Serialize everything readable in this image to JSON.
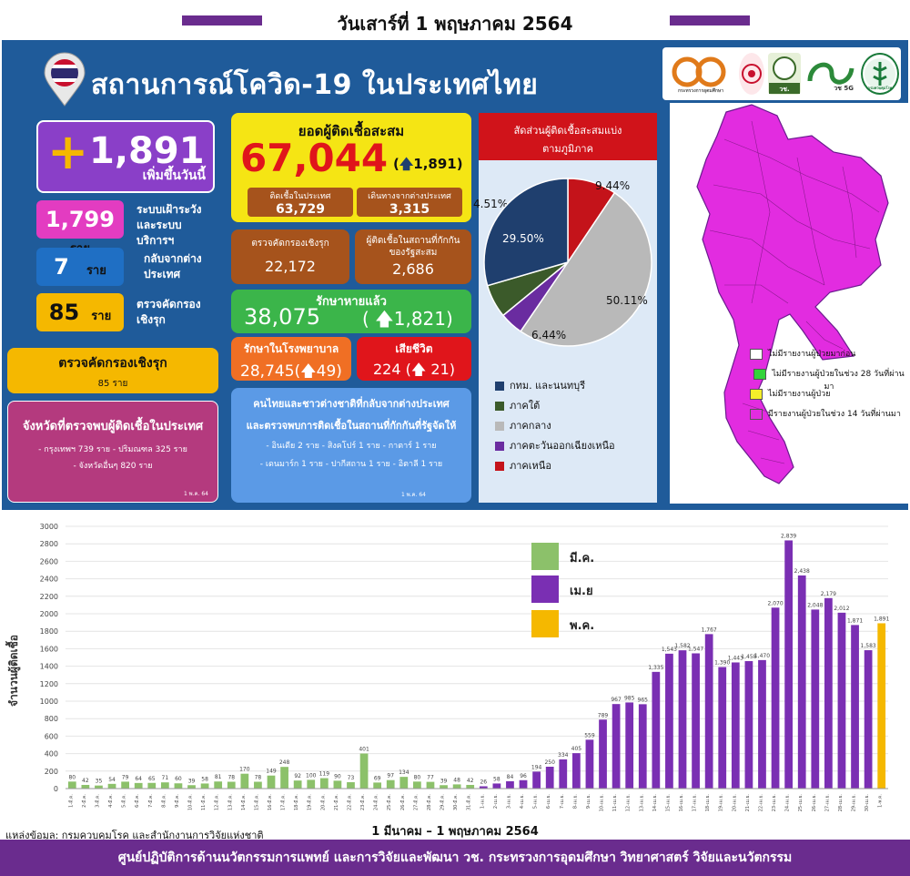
{
  "date_title": "วันเสาร์ที่ 1 พฤษภาคม 2564",
  "header_title": "สถานการณ์โควิด-19 ในประเทศไทย",
  "new_cases": {
    "value": "1,891",
    "label": "เพิ่มขึ้นวันนี้"
  },
  "breakdown": [
    {
      "num": "1,799",
      "unit": "ราย",
      "desc": "ระบบเฝ้าระวังและระบบบริการฯ",
      "color": "#e33cc1"
    },
    {
      "num": "7",
      "unit": "ราย",
      "desc": "กลับจากต่างประเทศ",
      "color": "#1f6fc4"
    },
    {
      "num": "85",
      "unit": "ราย",
      "desc": "ตรวจคัดกรองเชิงรุก",
      "color": "#f5b800"
    }
  ],
  "active_screen": {
    "title": "ตรวจคัดกรองเชิงรุก",
    "sub": "85 ราย"
  },
  "province": {
    "title": "จังหวัดที่ตรวจพบผู้ติดเชื้อในประเทศ",
    "line1": "- กรุงเทพฯ 739 ราย   - ปริมณฑล 325 ราย",
    "line2": "- จังหวัดอื่นๆ 820 ราย",
    "date": "1 พ.ค. 64"
  },
  "cumulative": {
    "title": "ยอดผู้ติดเชื้อสะสม",
    "value": "67,044",
    "delta": "1,891",
    "local_label": "ติดเชื้อในประเทศ",
    "local_value": "63,729",
    "abroad_label": "เดินทางจากต่างประเทศ",
    "abroad_value": "3,315"
  },
  "active_cum": {
    "label": "ตรวจคัดกรองเชิงรุก",
    "value": "22,172"
  },
  "quarantine_cum": {
    "label": "ผู้ติดเชื้อในสถานที่กักกันของรัฐสะสม",
    "value": "2,686"
  },
  "recovered": {
    "label": "รักษาหายแล้ว",
    "value": "38,075",
    "delta": "1,821"
  },
  "hospital": {
    "label": "รักษาในโรงพยาบาล",
    "value": "28,745",
    "delta": "49"
  },
  "deaths": {
    "label": "เสียชีวิต",
    "value": "224",
    "delta": "21"
  },
  "returnees": {
    "line1": "คนไทยและชาวต่างชาติที่กลับจากต่างประเทศ",
    "line2": "และตรวจพบการติดเชื้อในสถานที่กักกันที่รัฐจัดให้",
    "line3": "- อินเดีย 2 ราย   - สิงคโปร์ 1 ราย   - กาตาร์ 1 ราย",
    "line4": "- เดนมาร์ก 1 ราย   - ปากีสถาน 1 ราย   - อิตาลี 1 ราย",
    "date": "1 พ.ค. 64"
  },
  "pie": {
    "title": "สัดส่วนผู้ติดเชื้อสะสมแบ่งตามภูมิภาค",
    "slices": [
      {
        "name": "ภาคเหนือ",
        "value": 9.44,
        "label": "9.44%",
        "color": "#c4131a"
      },
      {
        "name": "ภาคกลาง",
        "value": 50.11,
        "label": "50.11%",
        "color": "#b9b9b9"
      },
      {
        "name": "ภาคตะวันออกเฉียงเหนือ",
        "value": 4.51,
        "label": "4.51%",
        "color": "#6a2ca0"
      },
      {
        "name": "ภาคใต้",
        "value": 6.44,
        "label": "6.44%",
        "color": "#3b5a2a"
      },
      {
        "name": "กทม. และนนทบุรี",
        "value": 29.5,
        "label": "29.50%",
        "color": "#1f3f6e"
      }
    ],
    "legend": [
      "กทม. และนนทบุรี",
      "ภาคใต้",
      "ภาคกลาง",
      "ภาคตะวันออกเฉียงเหนือ",
      "ภาคเหนือ"
    ],
    "legend_colors": [
      "#1f3f6e",
      "#3b5a2a",
      "#b9b9b9",
      "#6a2ca0",
      "#c4131a"
    ]
  },
  "logos": [
    "กระทรวงการอุดมศึกษา",
    "วช.",
    "วช 5G",
    "กรมควบคุมโรค"
  ],
  "map_legend": [
    {
      "text": "ไม่มีรายงานผู้ป่วยมาก่อน",
      "color": "#ffffff"
    },
    {
      "text": "ไม่มีรายงานผู้ป่วยในช่วง 28 วันที่ผ่านมา",
      "color": "#33d43a"
    },
    {
      "text": "ไม่มีรายงานผู้ป่วย",
      "color": "#f5ef2a"
    },
    {
      "text": "มีรายงานผู้ป่วยในช่วง 14 วันที่ผ่านมา",
      "color": "#e22ce0"
    }
  ],
  "chart_data": {
    "type": "bar",
    "ylabel": "จำนวนผู้ติดเชื้อ",
    "xlabel": "1 มีนาคม – 1 พฤษภาคม 2564",
    "ylim": [
      0,
      3000
    ],
    "yticks": [
      0,
      200,
      400,
      600,
      800,
      1000,
      1200,
      1400,
      1600,
      1800,
      2000,
      2200,
      2400,
      2600,
      2800,
      3000
    ],
    "legend": [
      {
        "name": "มี.ค.",
        "color": "#8cc16a"
      },
      {
        "name": "เม.ย",
        "color": "#7a2fb3"
      },
      {
        "name": "พ.ค.",
        "color": "#f5b800"
      }
    ],
    "categories": [
      "1-มี.ค.",
      "2-มี.ค.",
      "3-มี.ค.",
      "4-มี.ค.",
      "5-มี.ค.",
      "6-มี.ค.",
      "7-มี.ค.",
      "8-มี.ค.",
      "9-มี.ค.",
      "10-มี.ค.",
      "11-มี.ค.",
      "12-มี.ค.",
      "13-มี.ค.",
      "14-มี.ค.",
      "15-มี.ค.",
      "16-มี.ค.",
      "17-มี.ค.",
      "18-มี.ค.",
      "19-มี.ค.",
      "20-มี.ค.",
      "21-มี.ค.",
      "22-มี.ค.",
      "23-มี.ค.",
      "24-มี.ค.",
      "25-มี.ค.",
      "26-มี.ค.",
      "27-มี.ค.",
      "28-มี.ค.",
      "29-มี.ค.",
      "30-มี.ค.",
      "31-มี.ค.",
      "1-เม.ย.",
      "2-เม.ย.",
      "3-เม.ย.",
      "4-เม.ย.",
      "5-เม.ย.",
      "6-เม.ย.",
      "7-เม.ย.",
      "8-เม.ย.",
      "9-เม.ย.",
      "10-เม.ย.",
      "11-เม.ย.",
      "12-เม.ย.",
      "13-เม.ย.",
      "14-เม.ย.",
      "15-เม.ย.",
      "16-เม.ย.",
      "17-เม.ย.",
      "18-เม.ย.",
      "19-เม.ย.",
      "20-เม.ย.",
      "21-เม.ย.",
      "22-เม.ย.",
      "23-เม.ย.",
      "24-เม.ย.",
      "25-เม.ย.",
      "26-เม.ย.",
      "27-เม.ย.",
      "28-เม.ย.",
      "29-เม.ย.",
      "30-เม.ย.",
      "1-พ.ค."
    ],
    "values": [
      80,
      42,
      35,
      54,
      79,
      64,
      65,
      71,
      60,
      39,
      58,
      81,
      78,
      170,
      78,
      149,
      248,
      92,
      100,
      119,
      90,
      73,
      401,
      69,
      97,
      134,
      80,
      77,
      39,
      48,
      42,
      26,
      58,
      84,
      96,
      194,
      250,
      334,
      405,
      559,
      789,
      967,
      985,
      965,
      1335,
      1543,
      1582,
      1547,
      1767,
      1390,
      1443,
      1458,
      1470,
      2070,
      2839,
      2438,
      2048,
      2179,
      2012,
      1871,
      1583,
      1891
    ],
    "month_index": [
      0,
      0,
      0,
      0,
      0,
      0,
      0,
      0,
      0,
      0,
      0,
      0,
      0,
      0,
      0,
      0,
      0,
      0,
      0,
      0,
      0,
      0,
      0,
      0,
      0,
      0,
      0,
      0,
      0,
      0,
      0,
      1,
      1,
      1,
      1,
      1,
      1,
      1,
      1,
      1,
      1,
      1,
      1,
      1,
      1,
      1,
      1,
      1,
      1,
      1,
      1,
      1,
      1,
      1,
      1,
      1,
      1,
      1,
      1,
      1,
      1,
      2
    ]
  },
  "source_note": "แหล่งข้อมูล: กรมควบคุมโรค และสำนักงานการวิจัยแห่งชาติ",
  "footer": "ศูนย์ปฏิบัติการด้านนวัตกรรมการแพทย์ และการวิจัยและพัฒนา วช.  กระทรวงการอุดมศึกษา วิทยาศาสตร์ วิจัยและนวัตกรรม"
}
